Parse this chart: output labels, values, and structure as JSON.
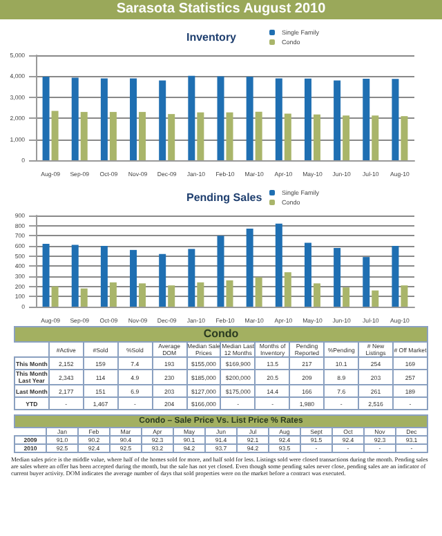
{
  "chart_data": [
    {
      "type": "bar",
      "title": "Inventory",
      "annotations": [
        "Sarasota Statistics August 2010"
      ],
      "categories": [
        "Aug-09",
        "Sep-09",
        "Oct-09",
        "Nov-09",
        "Dec-09",
        "Jan-10",
        "Feb-10",
        "Mar-10",
        "Apr-10",
        "May-10",
        "Jun-10",
        "Jul-10",
        "Aug-10"
      ],
      "series": [
        {
          "name": "Single Family",
          "color": "#1f6fb2",
          "values": [
            3980,
            3930,
            3900,
            3900,
            3800,
            4020,
            4000,
            3980,
            3900,
            3890,
            3800,
            3880,
            3870
          ]
        },
        {
          "name": "Condo",
          "color": "#a9b56a",
          "values": [
            2350,
            2300,
            2300,
            2300,
            2200,
            2280,
            2280,
            2310,
            2220,
            2180,
            2130,
            2130,
            2100
          ]
        }
      ],
      "ylim": [
        0,
        5000
      ],
      "yticks": [
        {
          "value": 0,
          "label": "0"
        },
        {
          "value": 1000,
          "label": "1,000"
        },
        {
          "value": 2000,
          "label": "2,000"
        },
        {
          "value": 3000,
          "label": "3,000"
        },
        {
          "value": 4000,
          "label": "4,000"
        },
        {
          "value": 5000,
          "label": "5,000"
        }
      ],
      "grid": "y",
      "legend": "top right"
    },
    {
      "type": "bar",
      "title": "Pending Sales",
      "categories": [
        "Aug-09",
        "Sep-09",
        "Oct-09",
        "Nov-09",
        "Dec-09",
        "Jan-10",
        "Feb-10",
        "Mar-10",
        "Apr-10",
        "May-10",
        "Jun-10",
        "Jul-10",
        "Aug-10"
      ],
      "series": [
        {
          "name": "Single Family",
          "color": "#1f6fb2",
          "values": [
            620,
            610,
            600,
            560,
            520,
            570,
            700,
            770,
            820,
            630,
            580,
            490,
            600
          ]
        },
        {
          "name": "Condo",
          "color": "#a9b56a",
          "values": [
            200,
            180,
            240,
            230,
            210,
            240,
            260,
            290,
            340,
            230,
            190,
            160,
            210
          ]
        }
      ],
      "ylim": [
        0,
        900
      ],
      "yticks": [
        0,
        100,
        200,
        300,
        400,
        500,
        600,
        700,
        800,
        900
      ],
      "grid": "y",
      "legend": "top right"
    },
    {
      "type": "other",
      "title": "Condo",
      "categories": [
        "#Active",
        "#Sold",
        "%Sold",
        "Average DOM",
        "Median Sale Prices",
        "Median Last 12 Months",
        "Months of Inventory",
        "Pending Reported",
        "%Pending",
        "# New Listings",
        "# Off Market"
      ],
      "y_categories": [
        "This Month",
        "This Month Last Year",
        "Last Month",
        "YTD"
      ],
      "cell_labels": [
        [
          "2,152",
          "159",
          "7.4",
          "193",
          "$155,000",
          "$169,900",
          "13.5",
          "217",
          "10.1",
          "254",
          "169"
        ],
        [
          "2,343",
          "114",
          "4.9",
          "230",
          "$185,000",
          "$200,000",
          "20.5",
          "209",
          "8.9",
          "203",
          "257"
        ],
        [
          "2,177",
          "151",
          "6.9",
          "203",
          "$127,000",
          "$175,000",
          "14.4",
          "166",
          "7.6",
          "261",
          "189"
        ],
        [
          "-",
          "1,467",
          "-",
          "204",
          "$166,000",
          "-",
          "-",
          "1,980",
          "-",
          "2,516",
          "-"
        ]
      ]
    },
    {
      "type": "other",
      "title": "Condo – Sale Price Vs. List Price % Rates",
      "categories": [
        "Jan",
        "Feb",
        "Mar",
        "Apr",
        "May",
        "Jun",
        "Jul",
        "Aug",
        "Sept",
        "Oct",
        "Nov",
        "Dec"
      ],
      "y_categories": [
        "2009",
        "2010"
      ],
      "cell_labels": [
        [
          "91.0",
          "90.2",
          "90.4",
          "92.3",
          "90.1",
          "91.4",
          "92.1",
          "92.4",
          "91.5",
          "92.4",
          "92.3",
          "93.1"
        ],
        [
          "92.5",
          "92.4",
          "92.5",
          "93.2",
          "94.2",
          "93.7",
          "94.2",
          "93.5",
          "-",
          "-",
          "-",
          "-"
        ]
      ],
      "annotations": [
        "Median sales price is the middle value, where half of the homes sold for more, and half sold for less. Listings sold were closed transactions during the month. Pending sales are sales where an offer has been accepted during the month, but the sale has not yet closed. Even though some pending sales never close, pending sales are an indicator of current buyer activity. DOM indicates the average number of days that sold properties were on the market before a contract was executed."
      ]
    }
  ]
}
